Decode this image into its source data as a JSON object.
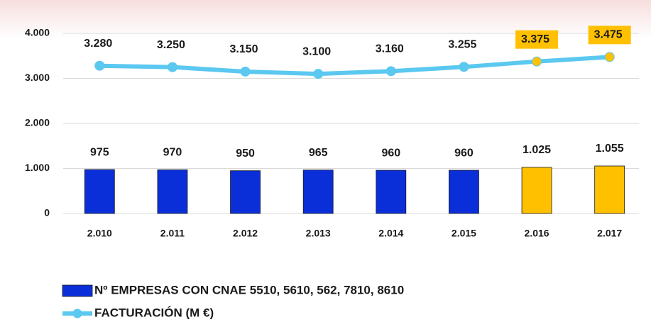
{
  "chart_data": {
    "type": "bar-line",
    "categories": [
      "2.010",
      "2.011",
      "2.012",
      "2.013",
      "2.014",
      "2.015",
      "2.016",
      "2.017"
    ],
    "series": [
      {
        "name": "Nº EMPRESAS CON CNAE 5510, 5610, 562, 7810, 8610",
        "type": "bar",
        "color": "#0a2fd8",
        "colors": [
          "#0a2fd8",
          "#0a2fd8",
          "#0a2fd8",
          "#0a2fd8",
          "#0a2fd8",
          "#0a2fd8",
          "#ffc000",
          "#ffc000"
        ],
        "values": [
          975,
          970,
          950,
          965,
          960,
          960,
          1025,
          1055
        ],
        "value_labels": [
          "975",
          "970",
          "950",
          "965",
          "960",
          "960",
          "1.025",
          "1.055"
        ]
      },
      {
        "name": "FACTURACIÓN (M €)",
        "type": "line",
        "color": "#5bc8f0",
        "colors": [
          "#5bc8f0",
          "#5bc8f0",
          "#5bc8f0",
          "#5bc8f0",
          "#5bc8f0",
          "#5bc8f0",
          "#ffc000",
          "#ffc000"
        ],
        "values": [
          3280,
          3250,
          3150,
          3100,
          3160,
          3255,
          3375,
          3475
        ],
        "value_labels": [
          "3.280",
          "3.250",
          "3.150",
          "3.100",
          "3.160",
          "3.255",
          "3.375",
          "3.475"
        ]
      }
    ],
    "ylim": [
      0,
      4000
    ],
    "yticks": [
      0,
      {
        "value": 1000,
        "label": "1.000"
      },
      {
        "value": 2000,
        "label": "2.000"
      },
      {
        "value": 3000,
        "label": "3.000"
      },
      {
        "value": 4000,
        "label": "4.000"
      }
    ],
    "grid": true,
    "legend": "bottom-left"
  }
}
